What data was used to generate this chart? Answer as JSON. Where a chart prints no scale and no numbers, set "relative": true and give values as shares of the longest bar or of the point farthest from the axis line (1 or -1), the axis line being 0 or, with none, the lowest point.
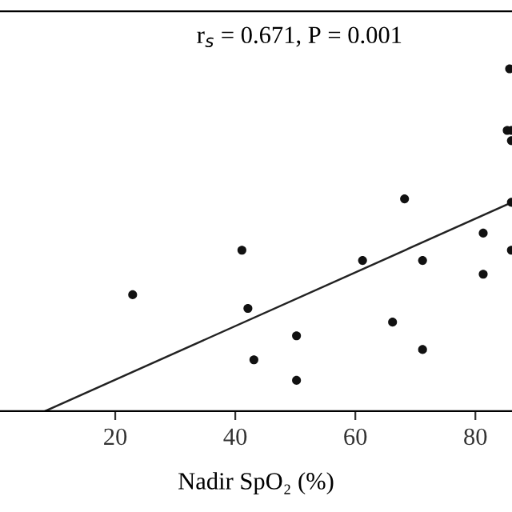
{
  "chart_data": {
    "type": "scatter",
    "relative": true,
    "xlabel": "Nadir SpO₂ (%)",
    "annotations": [
      "r$_{s}$ = 0.671, P = 0.001"
    ],
    "xlim": [
      0.8,
      86.1
    ],
    "xticks": [
      20,
      40,
      60,
      80
    ],
    "grid": false,
    "series": [
      {
        "color": "#111111",
        "marker": "circle",
        "x": [
          22.9,
          41.1,
          42.1,
          43.1,
          50.2,
          50.2,
          61.2,
          66.2,
          68.2,
          71.2,
          71.2,
          81.3,
          81.3,
          85.3,
          85.7,
          86.0,
          86.0,
          86.0,
          86.0
        ],
        "values": [
          0.34,
          0.47,
          0.3,
          0.15,
          0.22,
          0.09,
          0.44,
          0.26,
          0.62,
          0.44,
          0.18,
          0.52,
          0.4,
          0.82,
          1.0,
          0.82,
          0.79,
          0.61,
          0.47
        ]
      },
      {
        "type": "line",
        "color": "#222222",
        "line_style": "solid",
        "x": [
          8.3,
          86.1
        ],
        "values": [
          0,
          0.61
        ]
      }
    ]
  }
}
